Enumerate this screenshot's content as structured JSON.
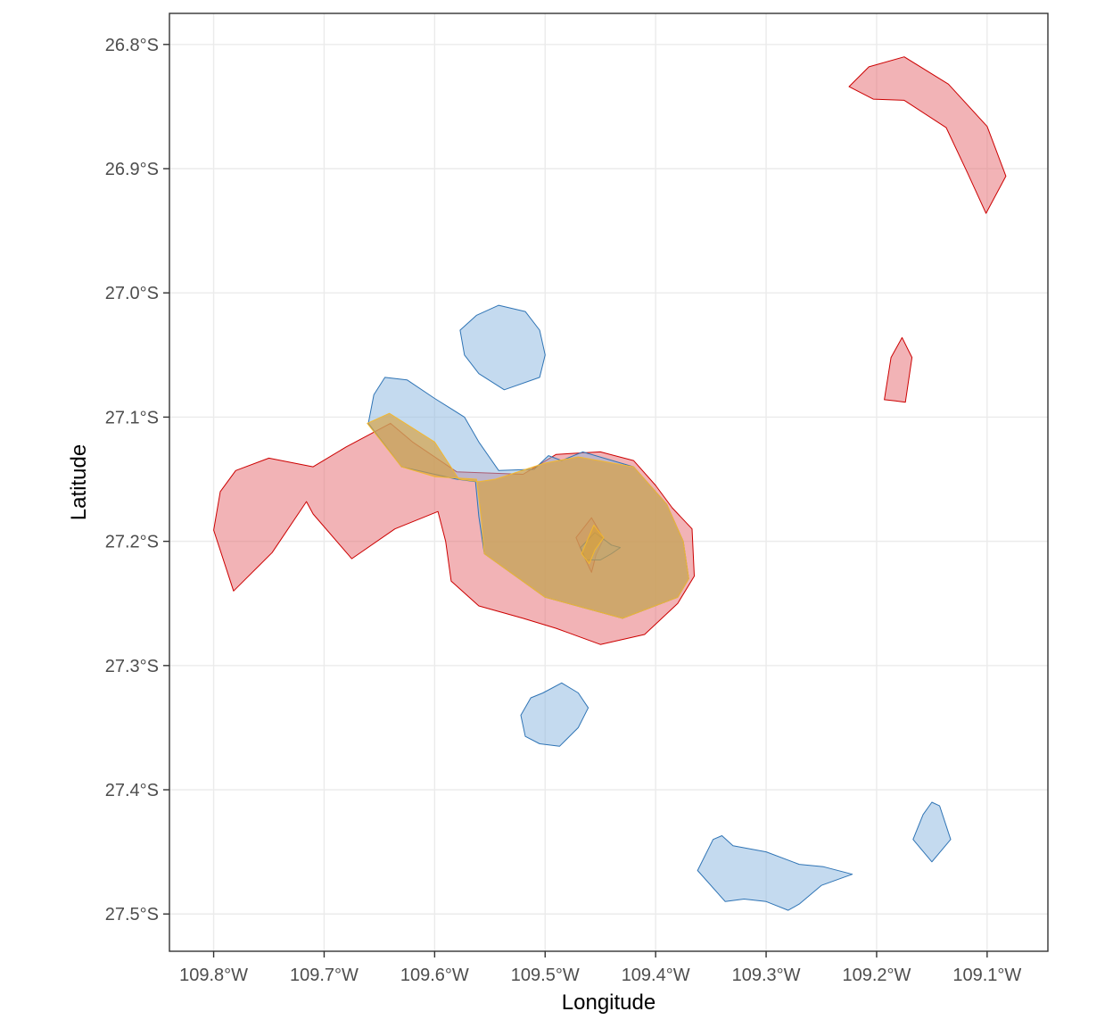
{
  "chart_data": {
    "type": "map",
    "xlabel": "Longitude",
    "ylabel": "Latitude",
    "xlim": [
      -109.84,
      -109.045
    ],
    "ylim": [
      -27.53,
      -26.775
    ],
    "x_ticks": [
      {
        "value": -109.8,
        "label": "109.8°W"
      },
      {
        "value": -109.7,
        "label": "109.7°W"
      },
      {
        "value": -109.6,
        "label": "109.6°W"
      },
      {
        "value": -109.5,
        "label": "109.5°W"
      },
      {
        "value": -109.4,
        "label": "109.4°W"
      },
      {
        "value": -109.3,
        "label": "109.3°W"
      },
      {
        "value": -109.2,
        "label": "109.2°W"
      },
      {
        "value": -109.1,
        "label": "109.1°W"
      }
    ],
    "y_ticks": [
      {
        "value": -26.8,
        "label": "26.8°S"
      },
      {
        "value": -26.9,
        "label": "26.9°S"
      },
      {
        "value": -27.0,
        "label": "27.0°S"
      },
      {
        "value": -27.1,
        "label": "27.1°S"
      },
      {
        "value": -27.2,
        "label": "27.2°S"
      },
      {
        "value": -27.3,
        "label": "27.3°S"
      },
      {
        "value": -27.4,
        "label": "27.4°S"
      },
      {
        "value": -27.5,
        "label": "27.5°S"
      }
    ],
    "grid": true,
    "layers": [
      {
        "name": "red",
        "fill": "#e6676e",
        "fill_opacity": 0.5,
        "stroke": "#cc0000",
        "polygons": [
          [
            [
              -109.8,
              -27.191
            ],
            [
              -109.794,
              -27.16
            ],
            [
              -109.78,
              -27.143
            ],
            [
              -109.75,
              -27.133
            ],
            [
              -109.71,
              -27.14
            ],
            [
              -109.68,
              -27.124
            ],
            [
              -109.64,
              -27.105
            ],
            [
              -109.62,
              -27.12
            ],
            [
              -109.58,
              -27.144
            ],
            [
              -109.52,
              -27.146
            ],
            [
              -109.49,
              -27.13
            ],
            [
              -109.45,
              -27.128
            ],
            [
              -109.42,
              -27.135
            ],
            [
              -109.4,
              -27.155
            ],
            [
              -109.385,
              -27.173
            ],
            [
              -109.367,
              -27.19
            ],
            [
              -109.365,
              -27.228
            ],
            [
              -109.38,
              -27.25
            ],
            [
              -109.41,
              -27.275
            ],
            [
              -109.45,
              -27.283
            ],
            [
              -109.49,
              -27.27
            ],
            [
              -109.52,
              -27.262
            ],
            [
              -109.56,
              -27.252
            ],
            [
              -109.585,
              -27.232
            ],
            [
              -109.59,
              -27.2
            ],
            [
              -109.597,
              -27.176
            ],
            [
              -109.636,
              -27.19
            ],
            [
              -109.675,
              -27.214
            ],
            [
              -109.71,
              -27.178
            ],
            [
              -109.716,
              -27.168
            ],
            [
              -109.747,
              -27.209
            ],
            [
              -109.782,
              -27.24
            ]
          ],
          [
            [
              -109.225,
              -26.834
            ],
            [
              -109.207,
              -26.818
            ],
            [
              -109.175,
              -26.81
            ],
            [
              -109.135,
              -26.832
            ],
            [
              -109.1,
              -26.866
            ],
            [
              -109.083,
              -26.906
            ],
            [
              -109.101,
              -26.936
            ],
            [
              -109.118,
              -26.903
            ],
            [
              -109.137,
              -26.867
            ],
            [
              -109.175,
              -26.845
            ],
            [
              -109.203,
              -26.844
            ]
          ],
          [
            [
              -109.193,
              -27.086
            ],
            [
              -109.187,
              -27.052
            ],
            [
              -109.177,
              -27.036
            ],
            [
              -109.168,
              -27.052
            ],
            [
              -109.174,
              -27.088
            ],
            [
              -109.183,
              -27.087
            ]
          ],
          [
            [
              -109.472,
              -27.197
            ],
            [
              -109.458,
              -27.181
            ],
            [
              -109.447,
              -27.198
            ],
            [
              -109.454,
              -27.211
            ],
            [
              -109.458,
              -27.225
            ],
            [
              -109.466,
              -27.21
            ]
          ]
        ]
      },
      {
        "name": "blue",
        "fill": "#8ab6e0",
        "fill_opacity": 0.5,
        "stroke": "#2f74b5",
        "polygons": [
          [
            [
              -109.66,
              -27.105
            ],
            [
              -109.655,
              -27.082
            ],
            [
              -109.645,
              -27.068
            ],
            [
              -109.625,
              -27.07
            ],
            [
              -109.6,
              -27.085
            ],
            [
              -109.573,
              -27.1
            ],
            [
              -109.56,
              -27.12
            ],
            [
              -109.542,
              -27.143
            ],
            [
              -109.51,
              -27.142
            ],
            [
              -109.497,
              -27.131
            ],
            [
              -109.485,
              -27.135
            ],
            [
              -109.466,
              -27.128
            ],
            [
              -109.42,
              -27.14
            ],
            [
              -109.39,
              -27.17
            ],
            [
              -109.375,
              -27.2
            ],
            [
              -109.37,
              -27.23
            ],
            [
              -109.38,
              -27.245
            ],
            [
              -109.43,
              -27.262
            ],
            [
              -109.5,
              -27.245
            ],
            [
              -109.555,
              -27.21
            ],
            [
              -109.56,
              -27.18
            ],
            [
              -109.563,
              -27.152
            ],
            [
              -109.58,
              -27.15
            ],
            [
              -109.6,
              -27.146
            ],
            [
              -109.63,
              -27.14
            ]
          ],
          [
            [
              -109.577,
              -27.03
            ],
            [
              -109.573,
              -27.05
            ],
            [
              -109.56,
              -27.065
            ],
            [
              -109.537,
              -27.078
            ],
            [
              -109.505,
              -27.068
            ],
            [
              -109.5,
              -27.05
            ],
            [
              -109.505,
              -27.03
            ],
            [
              -109.518,
              -27.015
            ],
            [
              -109.542,
              -27.01
            ],
            [
              -109.562,
              -27.018
            ]
          ],
          [
            [
              -109.522,
              -27.34
            ],
            [
              -109.518,
              -27.357
            ],
            [
              -109.505,
              -27.363
            ],
            [
              -109.487,
              -27.365
            ],
            [
              -109.47,
              -27.35
            ],
            [
              -109.461,
              -27.334
            ],
            [
              -109.47,
              -27.322
            ],
            [
              -109.485,
              -27.314
            ],
            [
              -109.502,
              -27.322
            ],
            [
              -109.513,
              -27.326
            ]
          ],
          [
            [
              -109.362,
              -27.465
            ],
            [
              -109.348,
              -27.44
            ],
            [
              -109.34,
              -27.437
            ],
            [
              -109.33,
              -27.445
            ],
            [
              -109.3,
              -27.45
            ],
            [
              -109.27,
              -27.46
            ],
            [
              -109.248,
              -27.462
            ],
            [
              -109.222,
              -27.468
            ],
            [
              -109.25,
              -27.477
            ],
            [
              -109.27,
              -27.492
            ],
            [
              -109.28,
              -27.497
            ],
            [
              -109.3,
              -27.49
            ],
            [
              -109.32,
              -27.488
            ],
            [
              -109.337,
              -27.49
            ]
          ],
          [
            [
              -109.167,
              -27.44
            ],
            [
              -109.158,
              -27.42
            ],
            [
              -109.15,
              -27.41
            ],
            [
              -109.143,
              -27.413
            ],
            [
              -109.133,
              -27.44
            ],
            [
              -109.15,
              -27.458
            ]
          ],
          [
            [
              -109.468,
              -27.205
            ],
            [
              -109.455,
              -27.193
            ],
            [
              -109.44,
              -27.203
            ],
            [
              -109.432,
              -27.205
            ],
            [
              -109.44,
              -27.21
            ],
            [
              -109.45,
              -27.215
            ],
            [
              -109.463,
              -27.215
            ]
          ]
        ]
      },
      {
        "name": "overlap",
        "fill": "#d9a03b",
        "fill_opacity": 0.65,
        "stroke": "#f2b830",
        "polygons": [
          [
            [
              -109.661,
              -27.105
            ],
            [
              -109.641,
              -27.097
            ],
            [
              -109.6,
              -27.12
            ],
            [
              -109.578,
              -27.15
            ],
            [
              -109.56,
              -27.152
            ],
            [
              -109.545,
              -27.15
            ],
            [
              -109.5,
              -27.137
            ],
            [
              -109.47,
              -27.132
            ],
            [
              -109.42,
              -27.14
            ],
            [
              -109.39,
              -27.17
            ],
            [
              -109.375,
              -27.2
            ],
            [
              -109.37,
              -27.23
            ],
            [
              -109.38,
              -27.245
            ],
            [
              -109.43,
              -27.262
            ],
            [
              -109.5,
              -27.245
            ],
            [
              -109.555,
              -27.21
            ],
            [
              -109.558,
              -27.18
            ],
            [
              -109.562,
              -27.15
            ],
            [
              -109.6,
              -27.148
            ],
            [
              -109.63,
              -27.14
            ]
          ],
          [
            [
              -109.467,
              -27.21
            ],
            [
              -109.456,
              -27.187
            ],
            [
              -109.447,
              -27.197
            ],
            [
              -109.455,
              -27.207
            ],
            [
              -109.46,
              -27.218
            ]
          ]
        ]
      }
    ]
  }
}
